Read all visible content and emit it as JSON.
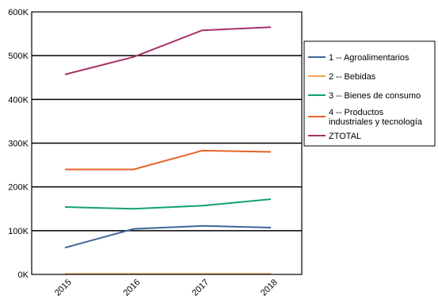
{
  "chart_data": {
    "type": "line",
    "categories": [
      "2015",
      "2016",
      "2017",
      "2018"
    ],
    "ylim": [
      0,
      600000
    ],
    "yticks": [
      0,
      100000,
      200000,
      300000,
      400000,
      500000,
      600000
    ],
    "ytick_labels": [
      "0K",
      "100K",
      "200K",
      "300K",
      "400K",
      "500K",
      "600K"
    ],
    "grid": true,
    "legend_position": "right",
    "series": [
      {
        "name": "1 -- Agroalimentarios",
        "color": "#3f6597",
        "values": [
          61000,
          104000,
          111000,
          107000
        ]
      },
      {
        "name": "2 -- Bebidas",
        "color": "#f0a04b",
        "values": [
          1000,
          1000,
          1000,
          1000
        ]
      },
      {
        "name": "3 -- Bienes de consumo",
        "color": "#14a078",
        "values": [
          154000,
          150000,
          157000,
          172000
        ]
      },
      {
        "name": "4 -- Productos industriales y tecnología",
        "legend_lines": [
          "4 -- Productos",
          "industriales y tecnología"
        ],
        "color": "#e8632a",
        "values": [
          240000,
          240000,
          283000,
          280000
        ]
      },
      {
        "name": "ZTOTAL",
        "color": "#a8326a",
        "values": [
          457000,
          497000,
          558000,
          565000
        ]
      }
    ]
  }
}
